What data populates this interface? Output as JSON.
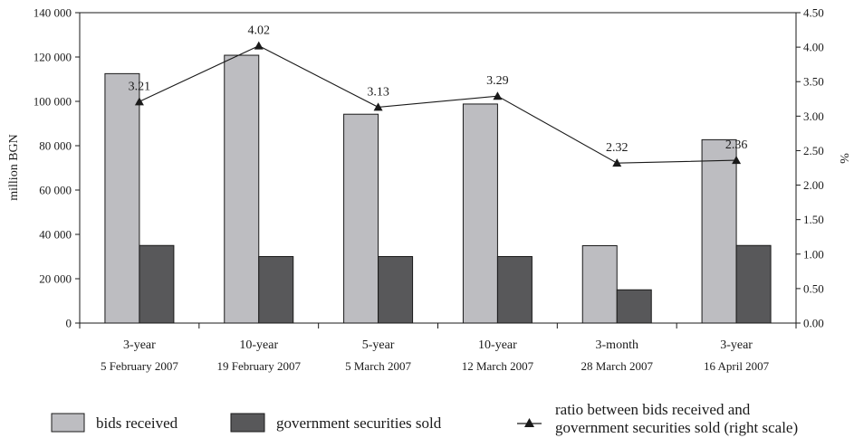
{
  "chart_data": {
    "type": "bar",
    "categories": [
      {
        "line1": "3-year",
        "line2": "5 February 2007"
      },
      {
        "line1": "10-year",
        "line2": "19 February 2007"
      },
      {
        "line1": "5-year",
        "line2": "5 March 2007"
      },
      {
        "line1": "10-year",
        "line2": "12 March 2007"
      },
      {
        "line1": "3-month",
        "line2": "28 March 2007"
      },
      {
        "line1": "3-year",
        "line2": "16 April 2007"
      }
    ],
    "series": [
      {
        "name": "bids received",
        "type": "bar",
        "axis": "left",
        "color": "#bdbdc1",
        "values": [
          112500,
          120800,
          94200,
          98800,
          34900,
          82700
        ]
      },
      {
        "name": "government securities sold",
        "type": "bar",
        "axis": "left",
        "color": "#58585a",
        "values": [
          35000,
          30000,
          30000,
          30000,
          15000,
          35000
        ]
      },
      {
        "name": "ratio between bids received and government securities sold (right scale)",
        "type": "line",
        "axis": "right",
        "marker": "triangle",
        "values": [
          3.21,
          4.02,
          3.13,
          3.29,
          2.32,
          2.36
        ],
        "labels": [
          "3.21",
          "4.02",
          "3.13",
          "3.29",
          "2.32",
          "2.36"
        ]
      }
    ],
    "legend_labels": {
      "bids": "bids received",
      "sold": "government securities sold",
      "ratio_line1": "ratio between bids received and",
      "ratio_line2": "government securities sold (right scale)"
    },
    "ylabel_left": "million BGN",
    "ylabel_right": "%",
    "ylim_left": [
      0,
      140000
    ],
    "ylim_right": [
      0,
      4.5
    ],
    "yticks_left": [
      "0",
      "20 000",
      "40 000",
      "60 000",
      "80 000",
      "100 000",
      "120 000",
      "140 000"
    ],
    "yticks_right": [
      "0.00",
      "0.50",
      "1.00",
      "1.50",
      "2.00",
      "2.50",
      "3.00",
      "3.50",
      "4.00",
      "4.50"
    ],
    "grid": false,
    "legend_position": "bottom"
  }
}
